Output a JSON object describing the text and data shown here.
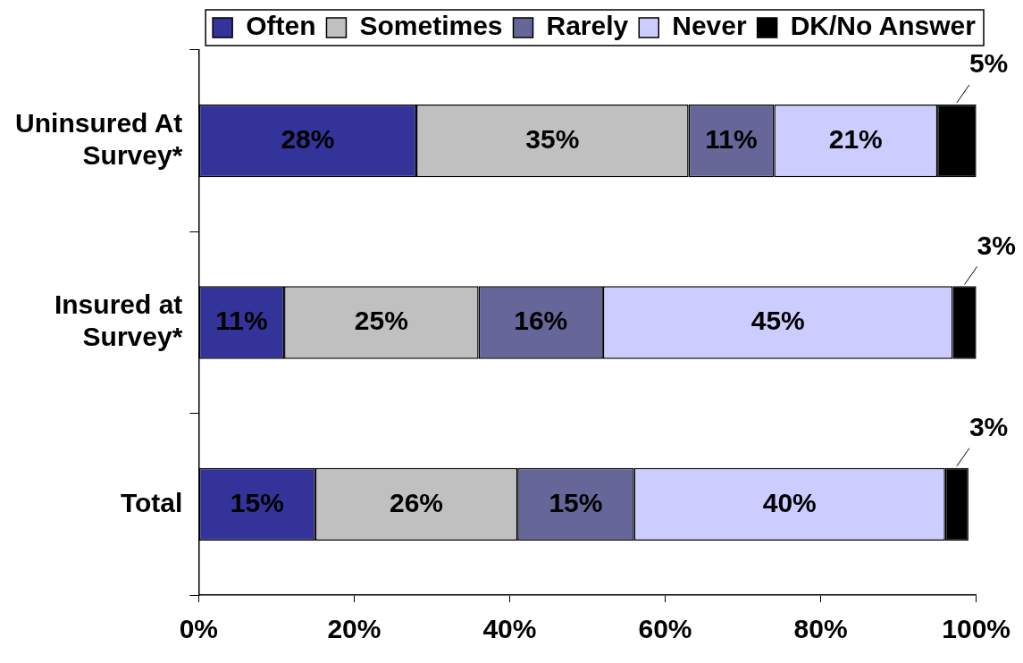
{
  "chart_data": {
    "type": "bar",
    "orientation": "horizontal",
    "stacked": true,
    "categories": [
      "Uninsured At Survey*",
      "Insured at Survey*",
      "Total"
    ],
    "series": [
      {
        "name": "Often",
        "color": "#333399",
        "values": [
          28,
          11,
          15
        ],
        "value_labels": [
          "28%",
          "11%",
          "15%"
        ]
      },
      {
        "name": "Sometimes",
        "color": "#c0c0c0",
        "values": [
          35,
          25,
          26
        ],
        "value_labels": [
          "35%",
          "25%",
          "26%"
        ]
      },
      {
        "name": "Rarely",
        "color": "#666699",
        "values": [
          11,
          16,
          15
        ],
        "value_labels": [
          "11%",
          "16%",
          "15%"
        ]
      },
      {
        "name": "Never",
        "color": "#ccccff",
        "values": [
          21,
          45,
          40
        ],
        "value_labels": [
          "21%",
          "45%",
          "40%"
        ]
      },
      {
        "name": "DK/No Answer",
        "color": "#000000",
        "values": [
          5,
          3,
          3
        ],
        "value_labels": [
          "5%",
          "3%",
          "3%"
        ]
      }
    ],
    "xlim": [
      0,
      100
    ],
    "xticks": [
      {
        "value": 0,
        "label": "0%"
      },
      {
        "value": 20,
        "label": "20%"
      },
      {
        "value": 40,
        "label": "40%"
      },
      {
        "value": 60,
        "label": "60%"
      },
      {
        "value": 80,
        "label": "80%"
      },
      {
        "value": 100,
        "label": "100%"
      }
    ],
    "grid": false,
    "legend": "top"
  }
}
